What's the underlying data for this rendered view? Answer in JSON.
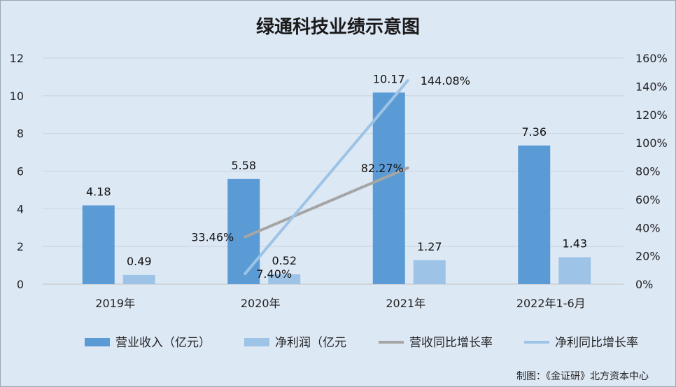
{
  "chart_data": {
    "type": "bar",
    "title": "绿通科技业绩示意图",
    "categories": [
      "2019年",
      "2020年",
      "2021年",
      "2022年1-6月"
    ],
    "series": [
      {
        "name": "营业收入（亿元）",
        "kind": "bar",
        "axis": "left",
        "color": "#5b9bd5",
        "values": [
          4.18,
          5.58,
          10.17,
          7.36
        ],
        "labels": [
          "4.18",
          "5.58",
          "10.17",
          "7.36"
        ]
      },
      {
        "name": "净利润（亿元",
        "kind": "bar",
        "axis": "left",
        "color": "#9dc3e6",
        "values": [
          0.49,
          0.52,
          1.27,
          1.43
        ],
        "labels": [
          "0.49",
          "0.52",
          "1.27",
          "1.43"
        ]
      },
      {
        "name": "营收同比增长率",
        "kind": "line",
        "axis": "right",
        "color": "#a5a5a5",
        "values": [
          null,
          33.46,
          82.27,
          null
        ],
        "labels": [
          "",
          "33.46%",
          "82.27%",
          ""
        ]
      },
      {
        "name": "净利同比增长率",
        "kind": "line",
        "axis": "right",
        "color": "#9dc3e6",
        "values": [
          null,
          7.4,
          144.08,
          null
        ],
        "labels": [
          "",
          "7.40%",
          "144.08%",
          ""
        ]
      }
    ],
    "y_left": {
      "min": 0,
      "max": 12,
      "step": 2,
      "ticks": [
        "0",
        "2",
        "4",
        "6",
        "8",
        "10",
        "12"
      ]
    },
    "y_right": {
      "min": 0,
      "max": 160,
      "step": 20,
      "unit": "%",
      "ticks": [
        "0%",
        "20%",
        "40%",
        "60%",
        "80%",
        "100%",
        "120%",
        "140%",
        "160%"
      ]
    },
    "grid": true,
    "legend_position": "bottom",
    "credit": "制图：《金证研》北方资本中心"
  }
}
